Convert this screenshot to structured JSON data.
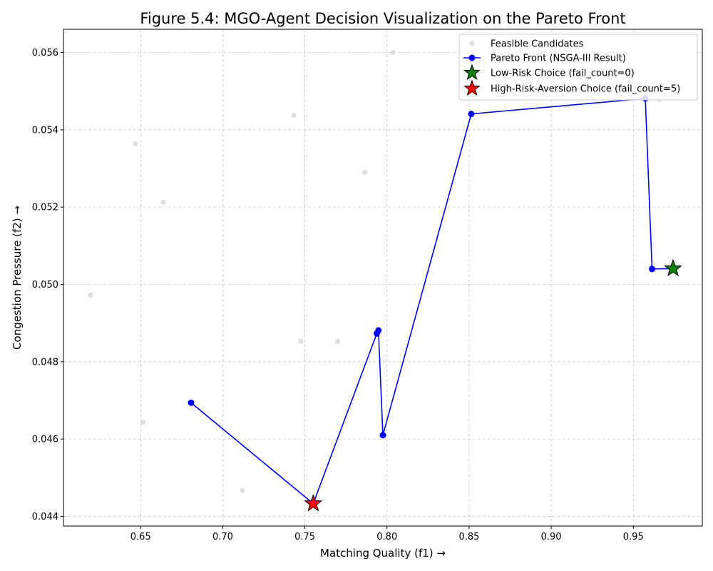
{
  "chart_data": {
    "type": "scatter",
    "title": "Figure 5.4: MGO-Agent Decision Visualization on the Pareto Front",
    "xlabel": "Matching Quality (f1) →",
    "ylabel": "Congestion Pressure (f2) →",
    "xlim": [
      0.603,
      0.992
    ],
    "ylim": [
      0.04375,
      0.0566
    ],
    "xticks": [
      0.65,
      0.7,
      0.75,
      0.8,
      0.85,
      0.9,
      0.95
    ],
    "xtick_labels": [
      "0.65",
      "0.70",
      "0.75",
      "0.80",
      "0.85",
      "0.90",
      "0.95"
    ],
    "yticks": [
      0.044,
      0.046,
      0.048,
      0.05,
      0.052,
      0.054,
      0.056
    ],
    "ytick_labels": [
      "0.044",
      "0.046",
      "0.048",
      "0.050",
      "0.052",
      "0.054",
      "0.056"
    ],
    "grid": true,
    "legend_position": "top-right",
    "series": [
      {
        "name": "Feasible Candidates",
        "kind": "scatter",
        "color": "#d3d3d3",
        "x": [
          0.6195,
          0.6468,
          0.6515,
          0.6638,
          0.712,
          0.7432,
          0.7475,
          0.77,
          0.7865,
          0.8035,
          0.9658
        ],
        "y": [
          0.04972,
          0.05364,
          0.04643,
          0.05213,
          0.04467,
          0.05437,
          0.04853,
          0.04852,
          0.0529,
          0.056,
          0.05478
        ]
      },
      {
        "name": "Pareto Front (NSGA-III Result)",
        "kind": "line",
        "color": "#0000ff",
        "x": [
          0.6807,
          0.7551,
          0.7938,
          0.7948,
          0.7975,
          0.8513,
          0.9573,
          0.9614,
          0.9745
        ],
        "y": [
          0.04694,
          0.04433,
          0.04873,
          0.04881,
          0.0461,
          0.05441,
          0.05481,
          0.0504,
          0.05041
        ]
      },
      {
        "name": "Low-Risk Choice (fail_count=0)",
        "kind": "star",
        "color": "#008000",
        "x": [
          0.9742
        ],
        "y": [
          0.05041
        ]
      },
      {
        "name": "High-Risk-Aversion Choice (fail_count=5)",
        "kind": "star",
        "color": "#ff0000",
        "x": [
          0.7551
        ],
        "y": [
          0.04433
        ]
      }
    ]
  }
}
